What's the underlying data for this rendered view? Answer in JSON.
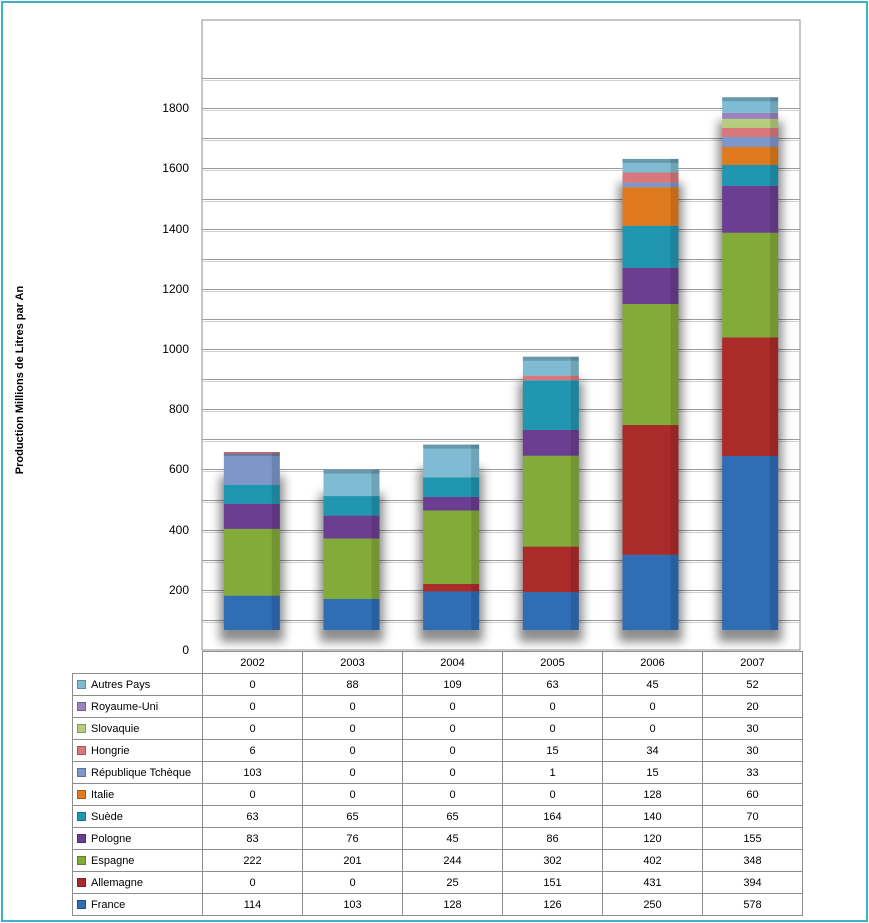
{
  "chart_data": {
    "type": "bar",
    "stacked": true,
    "title": "",
    "xlabel": "",
    "ylabel": "Production Millions  de Litres par An",
    "ylim": [
      0,
      2000
    ],
    "yticks": [
      0,
      200,
      400,
      600,
      800,
      1000,
      1200,
      1400,
      1600,
      1800
    ],
    "grid": true,
    "legend": "data-table",
    "categories": [
      "2002",
      "2003",
      "2004",
      "2005",
      "2006",
      "2007"
    ],
    "series": [
      {
        "name": "France",
        "color": "#2f6db5",
        "values": [
          114,
          103,
          128,
          126,
          250,
          578
        ]
      },
      {
        "name": "Allemagne",
        "color": "#ab2b2b",
        "values": [
          0,
          0,
          25,
          151,
          431,
          394
        ]
      },
      {
        "name": "Espagne",
        "color": "#83ab3a",
        "values": [
          222,
          201,
          244,
          302,
          402,
          348
        ]
      },
      {
        "name": "Pologne",
        "color": "#6b3e91",
        "values": [
          83,
          76,
          45,
          86,
          120,
          155
        ]
      },
      {
        "name": "Suède",
        "color": "#2196b0",
        "values": [
          63,
          65,
          65,
          164,
          140,
          70
        ]
      },
      {
        "name": "Italie",
        "color": "#e07a1f",
        "values": [
          0,
          0,
          0,
          0,
          128,
          60
        ]
      },
      {
        "name": "République Tchèque",
        "color": "#7d97cb",
        "values": [
          103,
          0,
          0,
          1,
          15,
          33
        ]
      },
      {
        "name": "Hongrie",
        "color": "#d9787a",
        "values": [
          6,
          0,
          0,
          15,
          34,
          30
        ]
      },
      {
        "name": "Slovaquie",
        "color": "#b5cd7c",
        "values": [
          0,
          0,
          0,
          0,
          0,
          30
        ]
      },
      {
        "name": "Royaume-Uni",
        "color": "#9c83be",
        "values": [
          0,
          0,
          0,
          0,
          0,
          20
        ]
      },
      {
        "name": "Autres Pays",
        "color": "#7fbbd2",
        "values": [
          0,
          88,
          109,
          63,
          45,
          52
        ]
      }
    ]
  }
}
